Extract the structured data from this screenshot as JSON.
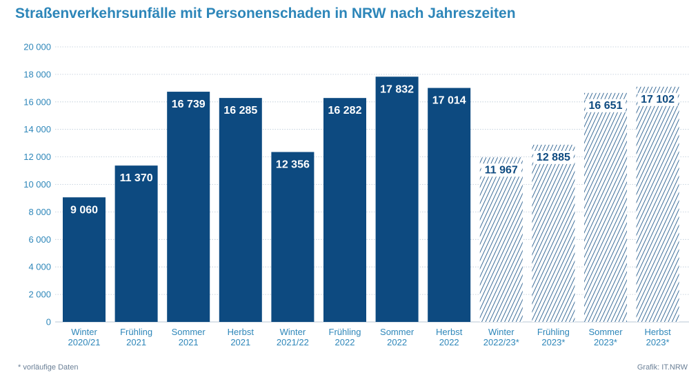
{
  "chart_data": {
    "type": "bar",
    "title": "Straßenverkehrsunfälle mit Personenschaden in NRW nach Jahreszeiten",
    "categories": [
      [
        "Winter",
        "2020/21"
      ],
      [
        "Frühling",
        "2021"
      ],
      [
        "Sommer",
        "2021"
      ],
      [
        "Herbst",
        "2021"
      ],
      [
        "Winter",
        "2021/22"
      ],
      [
        "Frühling",
        "2022"
      ],
      [
        "Sommer",
        "2022"
      ],
      [
        "Herbst",
        "2022"
      ],
      [
        "Winter",
        "2022/23*"
      ],
      [
        "Frühling",
        "2023*"
      ],
      [
        "Sommer",
        "2023*"
      ],
      [
        "Herbst",
        "2023*"
      ]
    ],
    "values": [
      9060,
      11370,
      16739,
      16285,
      12356,
      16282,
      17832,
      17014,
      11967,
      12885,
      16651,
      17102
    ],
    "value_labels": [
      "9 060",
      "11 370",
      "16 739",
      "16 285",
      "12 356",
      "16 282",
      "17 832",
      "17 014",
      "11 967",
      "12 885",
      "16 651",
      "17 102"
    ],
    "provisional": [
      false,
      false,
      false,
      false,
      false,
      false,
      false,
      false,
      true,
      true,
      true,
      true
    ],
    "ylim": [
      0,
      20000
    ],
    "yticks": [
      0,
      2000,
      4000,
      6000,
      8000,
      10000,
      12000,
      14000,
      16000,
      18000,
      20000
    ],
    "ytick_labels": [
      "0",
      "2 000",
      "4 000",
      "6 000",
      "8 000",
      "10 000",
      "12 000",
      "14 000",
      "16 000",
      "18 000",
      "20 000"
    ],
    "xlabel": "",
    "ylabel": "",
    "grid": true,
    "legend": "none"
  },
  "footnote": "*  vorläufige Daten",
  "source": "Grafik: IT.NRW",
  "colors": {
    "bar": "#0d4a80",
    "title": "#2d86b9",
    "axis_text": "#2d86b9",
    "grid": "#b9c7d6",
    "label_text": "#ffffff"
  }
}
